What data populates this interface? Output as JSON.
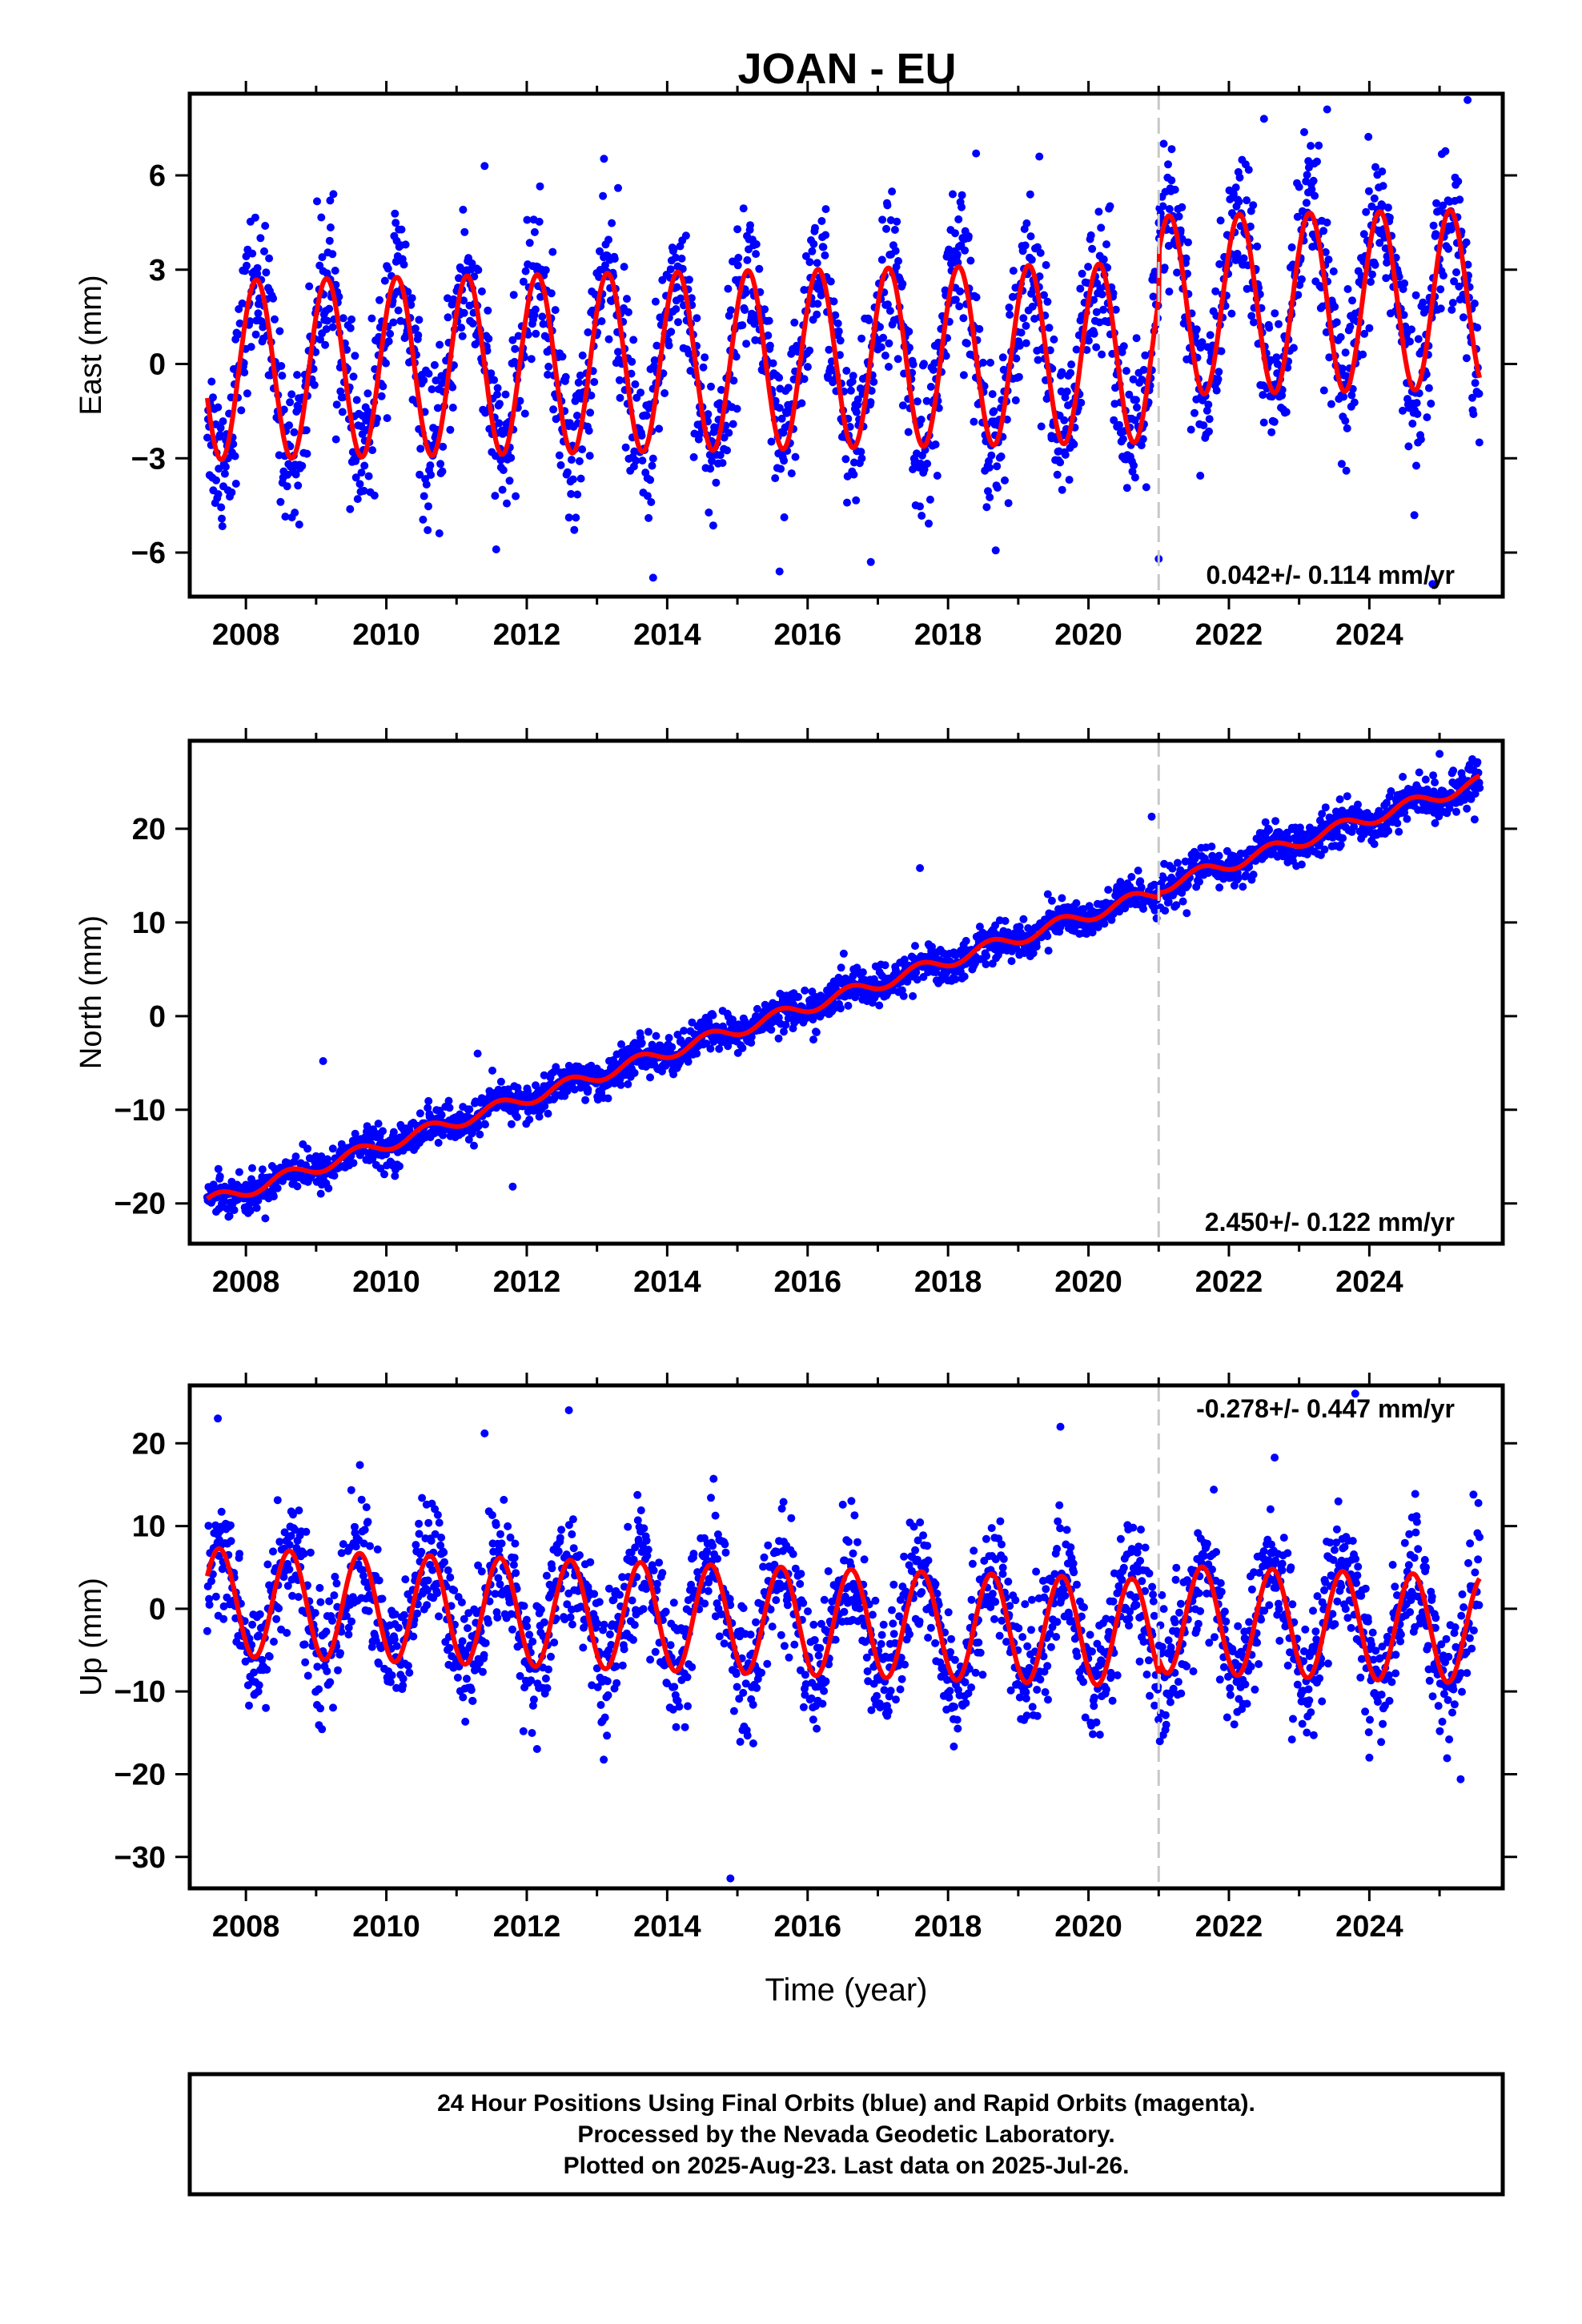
{
  "chart_data": [
    {
      "type": "scatter",
      "title": "JOAN - EU",
      "xlabel": "",
      "ylabel": "East (mm)",
      "xlim": [
        2007.2,
        2025.9
      ],
      "ylim": [
        -7.4,
        8.6
      ],
      "xticks": [
        "2008",
        "2010",
        "2012",
        "2014",
        "2016",
        "2018",
        "2020",
        "2022",
        "2024"
      ],
      "yticks": [
        "6",
        "3",
        "0",
        "−3",
        "−6"
      ],
      "ytick_values": [
        6,
        3,
        0,
        -3,
        -6
      ],
      "rate": "0.042+/- 0.114 mm/yr",
      "rate_position": "bottom-right",
      "break_year": 2021.0,
      "model": {
        "trend_slope": 0.042,
        "offset_before": -0.2,
        "offset_after": 1.3,
        "annual_amplitude": 2.85,
        "phase_year": 0.15
      },
      "data_range": [
        2007.45,
        2025.57
      ],
      "scatter_sd": 1.2,
      "outliers": [
        [
          2009.2,
          5.2
        ],
        [
          2011.4,
          6.3
        ],
        [
          2013.3,
          5.6
        ],
        [
          2013.8,
          -6.8
        ],
        [
          2015.6,
          -6.6
        ],
        [
          2016.9,
          -6.3
        ],
        [
          2018.4,
          6.7
        ],
        [
          2019.3,
          6.6
        ],
        [
          2021.0,
          -6.2
        ],
        [
          2022.5,
          7.8
        ],
        [
          2023.4,
          8.1
        ],
        [
          2024.9,
          -7.0
        ],
        [
          2025.4,
          8.4
        ]
      ],
      "grid": false,
      "series": [
        {
          "name": "Final Orbits",
          "color": "#0000ff",
          "style": "points"
        },
        {
          "name": "model fit",
          "color": "#ff0000",
          "style": "line"
        }
      ]
    },
    {
      "type": "scatter",
      "title": "",
      "xlabel": "",
      "ylabel": "North (mm)",
      "xlim": [
        2007.2,
        2025.9
      ],
      "ylim": [
        -24.3,
        29.4
      ],
      "xticks": [
        "2008",
        "2010",
        "2012",
        "2014",
        "2016",
        "2018",
        "2020",
        "2022",
        "2024"
      ],
      "yticks": [
        "20",
        "10",
        "0",
        "−10",
        "−20"
      ],
      "ytick_values": [
        20,
        10,
        0,
        -10,
        -20
      ],
      "rate": "2.450+/- 0.122 mm/yr",
      "rate_position": "bottom-right",
      "break_year": 2021.0,
      "model": {
        "trend_slope": 2.45,
        "trend_at_2007_5": -19.8,
        "offset_before": 0.0,
        "offset_after": 0.5,
        "annual_amplitude": 0.7,
        "phase_year": 0.6
      },
      "data_range": [
        2007.45,
        2025.57
      ],
      "scatter_sd": 1.0,
      "outliers": [
        [
          2009.1,
          -4.8
        ],
        [
          2011.3,
          -4.0
        ],
        [
          2011.8,
          -18.2
        ],
        [
          2017.6,
          15.8
        ],
        [
          2020.9,
          21.3
        ],
        [
          2021.4,
          11.0
        ],
        [
          2025.0,
          28.0
        ],
        [
          2025.5,
          21.0
        ]
      ],
      "grid": false,
      "series": [
        {
          "name": "Final Orbits",
          "color": "#0000ff",
          "style": "points"
        },
        {
          "name": "model fit",
          "color": "#ff0000",
          "style": "line"
        }
      ]
    },
    {
      "type": "scatter",
      "title": "",
      "xlabel": "Time (year)",
      "ylabel": "Up (mm)",
      "xlim": [
        2007.2,
        2025.9
      ],
      "ylim": [
        -33.8,
        27.0
      ],
      "xticks": [
        "2008",
        "2010",
        "2012",
        "2014",
        "2016",
        "2018",
        "2020",
        "2022",
        "2024"
      ],
      "yticks": [
        "20",
        "10",
        "0",
        "−10",
        "−20",
        "−30"
      ],
      "ytick_values": [
        20,
        10,
        0,
        -10,
        -20,
        -30
      ],
      "rate": "-0.278+/- 0.447 mm/yr",
      "rate_position": "top-right",
      "break_year": 2021.0,
      "model": {
        "trend_slope": -0.278,
        "offset_before": 0.8,
        "offset_after": 2.5,
        "annual_amplitude": 6.5,
        "phase_year": 0.62
      },
      "data_range": [
        2007.45,
        2025.57
      ],
      "scatter_sd": 3.8,
      "outliers": [
        [
          2007.6,
          23.0
        ],
        [
          2011.4,
          21.2
        ],
        [
          2012.6,
          24.0
        ],
        [
          2014.9,
          -32.6
        ],
        [
          2019.6,
          22.0
        ],
        [
          2024.0,
          -18.0
        ],
        [
          2025.3,
          -20.6
        ],
        [
          2023.8,
          26.0
        ]
      ],
      "grid": false,
      "series": [
        {
          "name": "Final Orbits",
          "color": "#0000ff",
          "style": "points"
        },
        {
          "name": "model fit",
          "color": "#ff0000",
          "style": "line"
        }
      ]
    }
  ],
  "footer": {
    "line1": "24 Hour Positions Using Final Orbits (blue) and Rapid Orbits (magenta).",
    "line2": "Processed by the Nevada Geodetic Laboratory.",
    "line3": "Plotted on 2025-Aug-23. Last data on 2025-Jul-26."
  },
  "colors": {
    "points": "#0000ff",
    "fit": "#ff0000",
    "break_line": "#c8c8c8",
    "frame": "#000000"
  }
}
